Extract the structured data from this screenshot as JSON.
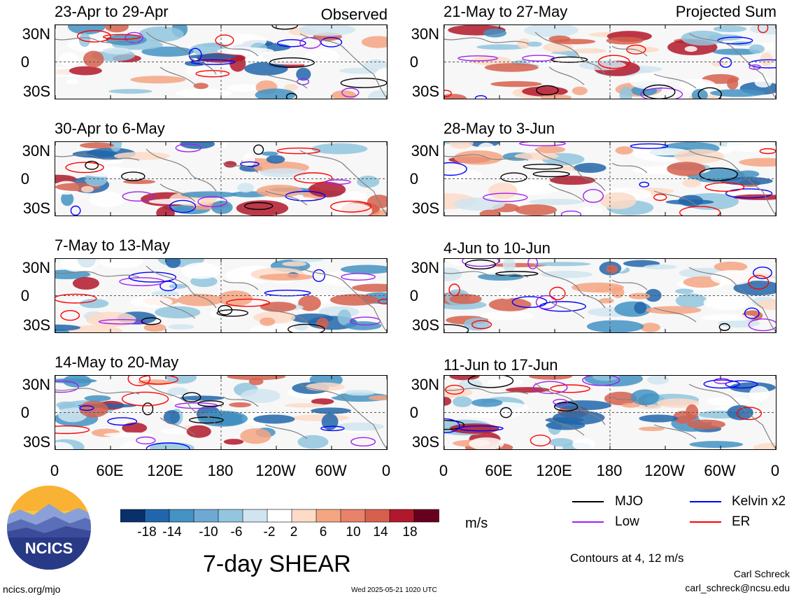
{
  "figure": {
    "main_title": "7-day SHEAR",
    "units": "m/s",
    "site": "ncics.org/mjo",
    "timestamp": "Wed 2025-05-21 1020 UTC",
    "author": "Carl Schreck",
    "email": "carl_schreck@ncsu.edu",
    "logo_text": "NCICS",
    "contour_note": "Contours at 4, 12 m/s"
  },
  "columns": {
    "left_tag": "Observed",
    "right_tag": "Projected Sum"
  },
  "legend": [
    {
      "label": "MJO",
      "color": "#000000"
    },
    {
      "label": "Kelvin x2",
      "color": "#0000ff"
    },
    {
      "label": "Low",
      "color": "#a020f0"
    },
    {
      "label": "ER",
      "color": "#ff0000"
    }
  ],
  "colorbar": {
    "ticks": [
      "-18",
      "-14",
      "-10",
      "-6",
      "-2",
      "2",
      "6",
      "10",
      "14",
      "18"
    ],
    "colors": [
      "#08306b",
      "#2166ac",
      "#4393c3",
      "#6ea9d4",
      "#92c5de",
      "#d1e5f0",
      "#ffffff",
      "#fddbc7",
      "#f4a582",
      "#e8826a",
      "#d6604d",
      "#b2182b",
      "#67001f"
    ]
  },
  "chart_data": {
    "type": "heatmap",
    "variable": "7-day SHEAR",
    "units": "m/s",
    "lat_ticks": [
      "30N",
      "0",
      "30S"
    ],
    "lon_ticks": [
      "0",
      "60E",
      "120E",
      "180",
      "120W",
      "60W",
      "0"
    ],
    "panels": [
      {
        "title": "23-Apr to 29-Apr",
        "column": "Observed"
      },
      {
        "title": "30-Apr to 6-May",
        "column": "Observed"
      },
      {
        "title": "7-May to 13-May",
        "column": "Observed"
      },
      {
        "title": "14-May to 20-May",
        "column": "Observed"
      },
      {
        "title": "21-May to 27-May",
        "column": "Projected Sum"
      },
      {
        "title": "28-May to 3-Jun",
        "column": "Projected Sum"
      },
      {
        "title": "4-Jun to 10-Jun",
        "column": "Projected Sum"
      },
      {
        "title": "11-Jun to 17-Jun",
        "column": "Projected Sum"
      }
    ],
    "contour_levels": [
      4,
      12
    ],
    "series": [
      {
        "name": "MJO",
        "color": "#000000"
      },
      {
        "name": "Kelvin x2",
        "color": "#0000ff"
      },
      {
        "name": "Low",
        "color": "#a020f0"
      },
      {
        "name": "ER",
        "color": "#ff0000"
      }
    ]
  }
}
